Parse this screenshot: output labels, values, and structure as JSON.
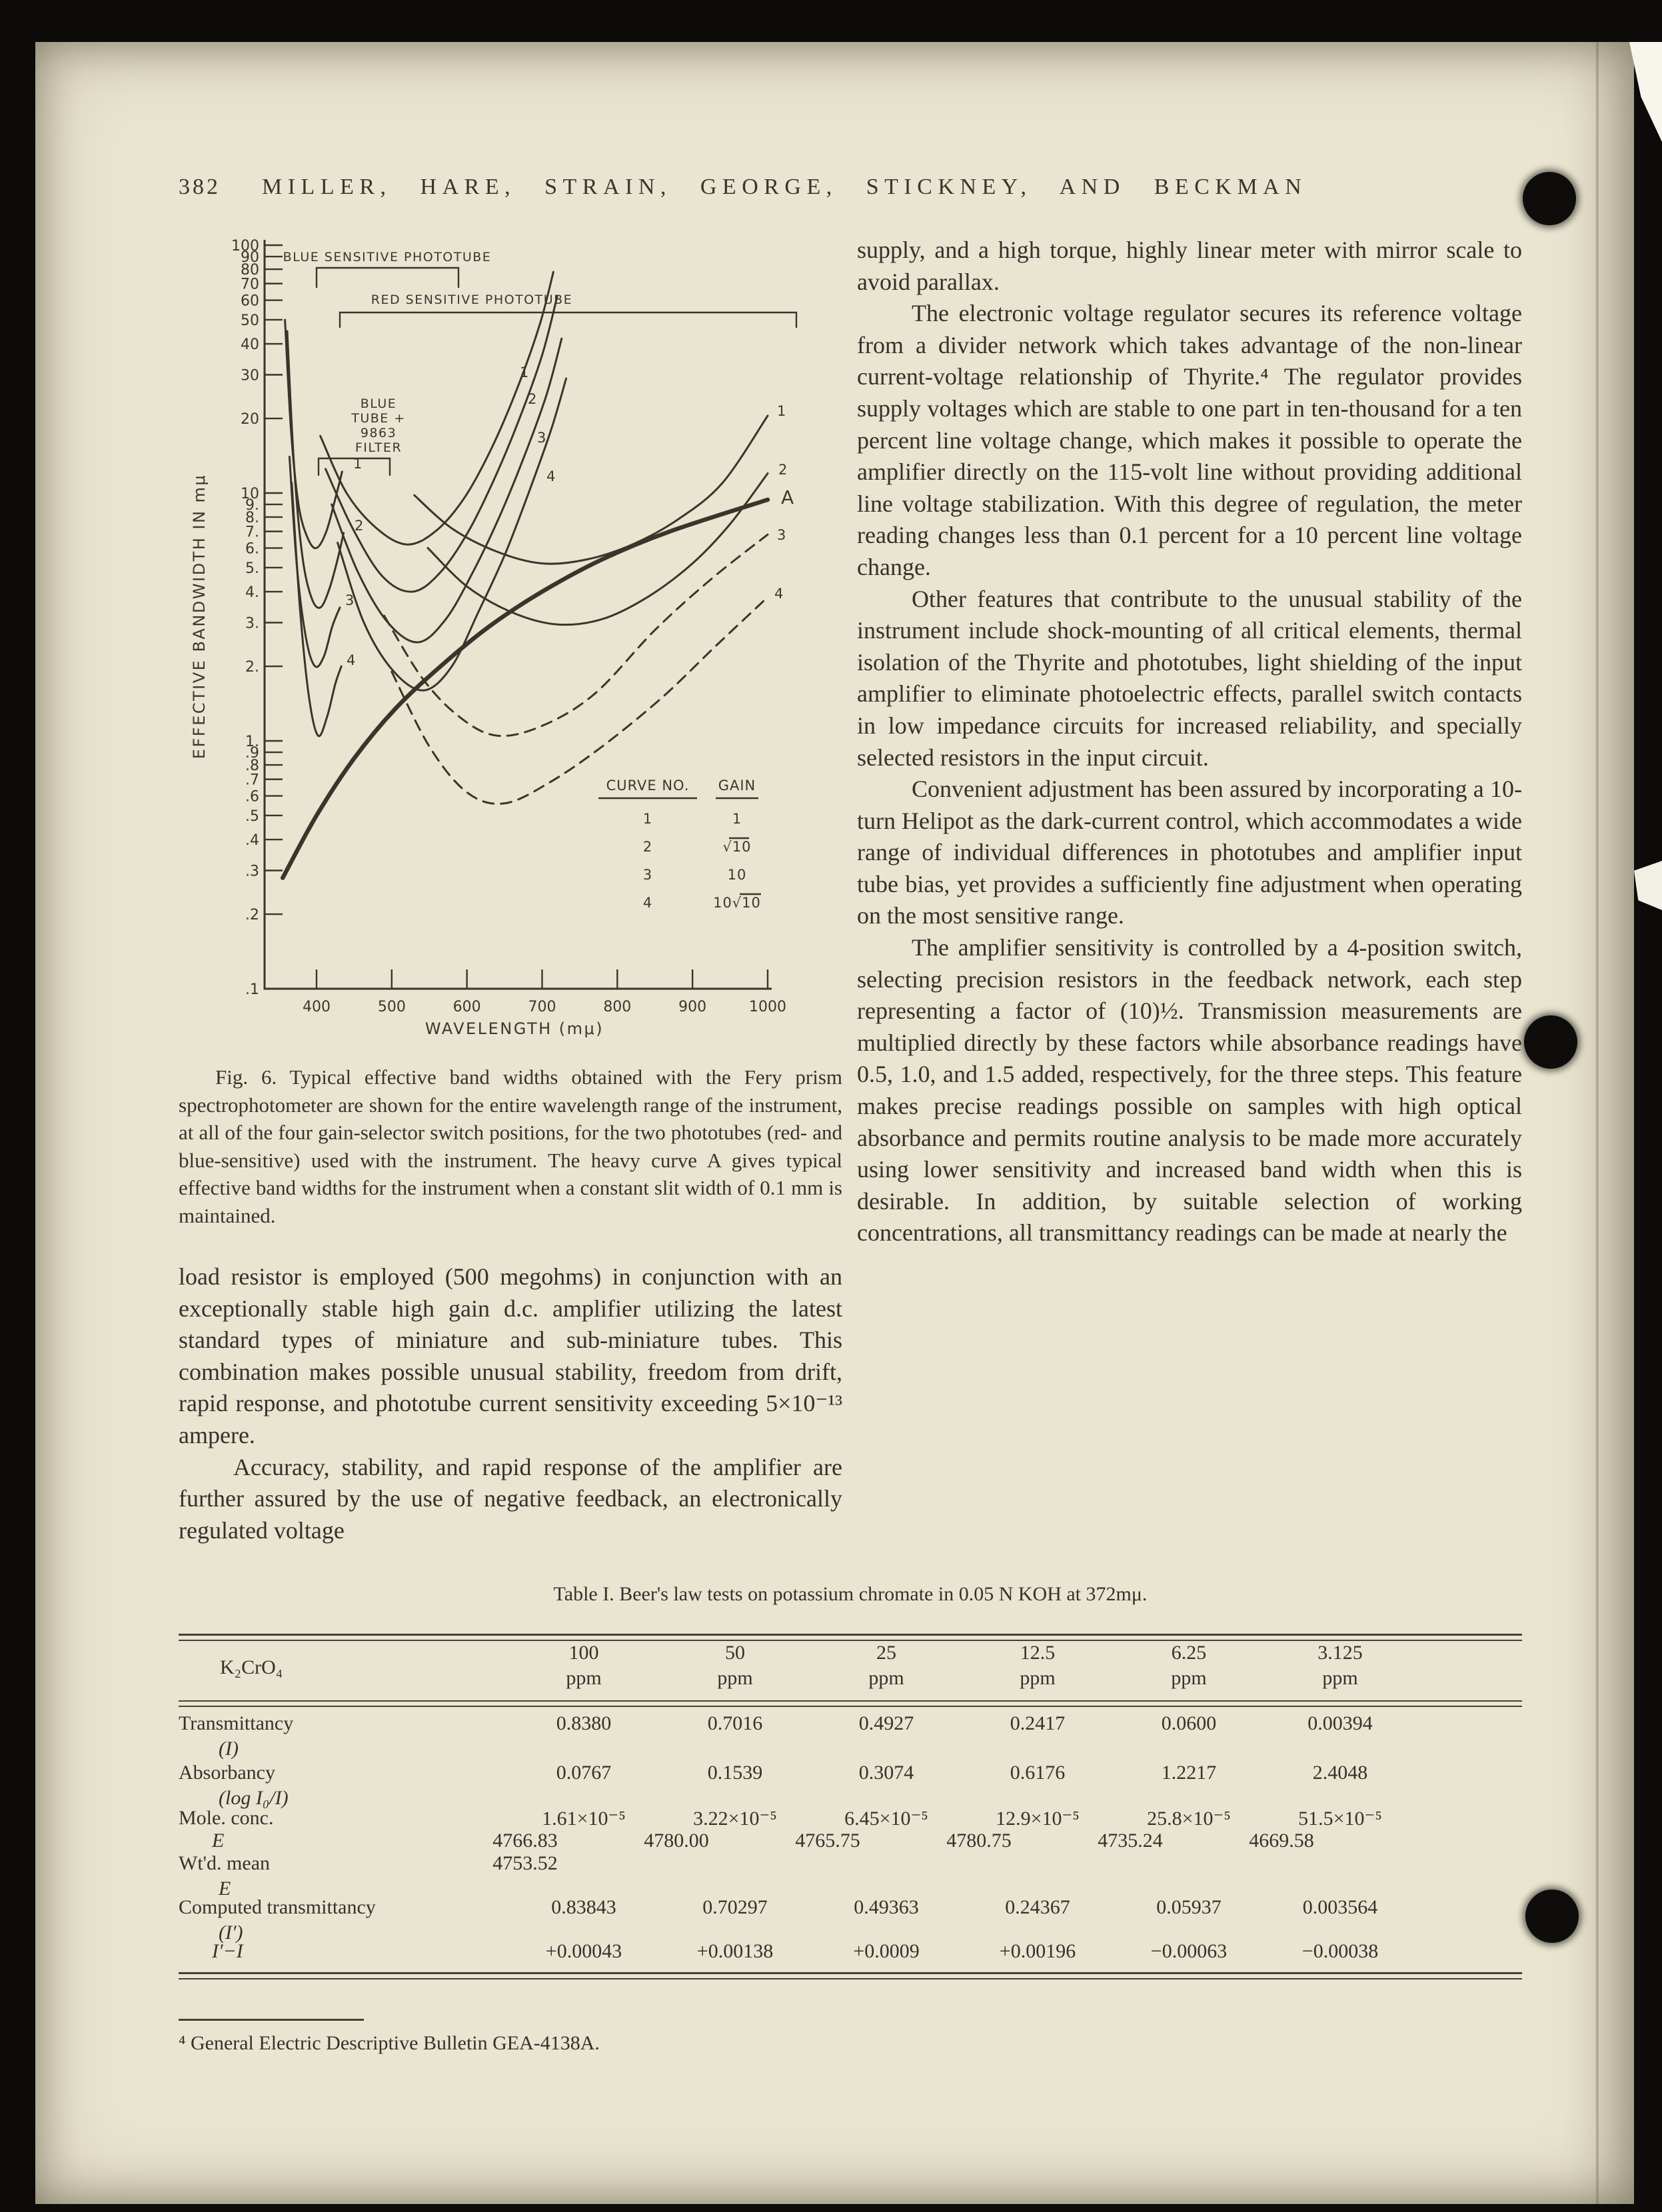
{
  "header": {
    "page_number": "382",
    "authors": "MILLER, HARE, STRAIN, GEORGE, STICKNEY, AND BECKMAN"
  },
  "chart_data": {
    "type": "line",
    "xlabel": "WAVELENGTH   (mμ)",
    "ylabel": "EFFECTIVE BANDWIDTH IN mμ",
    "x_range": [
      400,
      1000
    ],
    "y_scale": "log",
    "y_range": [
      0.1,
      100
    ],
    "grid": "off",
    "x_ticks": [
      [
        "400",
        400
      ],
      [
        "500",
        500
      ],
      [
        "600",
        600
      ],
      [
        "700",
        700
      ],
      [
        "800",
        800
      ],
      [
        "900",
        900
      ],
      [
        "1000",
        1000
      ]
    ],
    "y_ticks": [
      [
        "100",
        100
      ],
      [
        "90",
        90
      ],
      [
        "80",
        80
      ],
      [
        "70",
        70
      ],
      [
        "60",
        60
      ],
      [
        "50",
        50
      ],
      [
        "40",
        40
      ],
      [
        "30",
        30
      ],
      [
        "20",
        20
      ],
      [
        "10",
        10
      ],
      [
        "9.",
        9
      ],
      [
        "8.",
        8
      ],
      [
        "7.",
        7
      ],
      [
        "6.",
        6
      ],
      [
        "5.",
        5
      ],
      [
        "4.",
        4
      ],
      [
        "3.",
        3
      ],
      [
        "2.",
        2
      ],
      [
        "1.",
        1
      ],
      [
        ".9",
        0.9
      ],
      [
        ".8",
        0.8
      ],
      [
        ".7",
        0.7
      ],
      [
        ".6",
        0.6
      ],
      [
        ".5",
        0.5
      ],
      [
        ".4",
        0.4
      ],
      [
        ".3",
        0.3
      ],
      [
        ".2",
        0.2
      ],
      [
        ".1",
        0.1
      ]
    ],
    "annotations": [
      {
        "t": "BLUE SENSITIVE PHOTOTUBE",
        "x": 581,
        "y": 392
      },
      {
        "t": "RED SENSITIVE PHOTOTUBE",
        "x": 708,
        "y": 456
      },
      {
        "t": "BLUE",
        "x": 568,
        "y": 612
      },
      {
        "t": "TUBE +",
        "x": 568,
        "y": 634
      },
      {
        "t": "9863",
        "x": 568,
        "y": 656
      },
      {
        "t": "FILTER",
        "x": 568,
        "y": 678
      }
    ],
    "brackets": [
      "M475 432 V402 H688 V432",
      "M510 492 V469 H1195 V492",
      "M478 714 V688 H585 V714"
    ],
    "legend": {
      "headers": [
        "CURVE NO.",
        "GAIN"
      ],
      "rows": [
        {
          "no": "1",
          "gain": "1"
        },
        {
          "no": "2",
          "gain": "√10",
          "over": [
            1094,
            1124
          ]
        },
        {
          "no": "3",
          "gain": "10"
        },
        {
          "no": "4",
          "gain": "10√10",
          "over": [
            1110,
            1142
          ]
        }
      ]
    },
    "series": [
      {
        "name": "blue tube + 9863 filter, gain 1",
        "style": "solid",
        "points": [
          [
            358,
            50
          ],
          [
            366,
            18
          ],
          [
            376,
            9
          ],
          [
            388,
            6.6
          ],
          [
            400,
            6.0
          ],
          [
            413,
            7.0
          ],
          [
            425,
            9.5
          ],
          [
            434,
            12.2
          ]
        ]
      },
      {
        "name": "blue tube + 9863 filter, gain √10",
        "style": "solid",
        "points": [
          [
            361,
            45
          ],
          [
            370,
            13
          ],
          [
            381,
            5.6
          ],
          [
            393,
            3.8
          ],
          [
            405,
            3.45
          ],
          [
            417,
            4.1
          ],
          [
            428,
            5.4
          ],
          [
            436,
            6.9
          ]
        ]
      },
      {
        "name": "blue tube + 9863 filter, gain 10",
        "style": "solid",
        "points": [
          [
            364,
            14
          ],
          [
            374,
            5.0
          ],
          [
            386,
            2.6
          ],
          [
            398,
            2.0
          ],
          [
            410,
            2.2
          ],
          [
            421,
            2.9
          ],
          [
            431,
            3.45
          ]
        ]
      },
      {
        "name": "blue tube + 9863 filter, gain 10√10",
        "style": "solid",
        "points": [
          [
            367,
            11
          ],
          [
            378,
            3.4
          ],
          [
            390,
            1.5
          ],
          [
            402,
            1.05
          ],
          [
            414,
            1.25
          ],
          [
            425,
            1.7
          ],
          [
            433,
            2.0
          ]
        ]
      },
      {
        "name": "blue sensitive phototube, curve 1",
        "style": "solid",
        "points": [
          [
            405,
            17
          ],
          [
            440,
            10
          ],
          [
            480,
            7.2
          ],
          [
            520,
            6.2
          ],
          [
            558,
            7.0
          ],
          [
            596,
            9.5
          ],
          [
            632,
            15
          ],
          [
            666,
            26
          ],
          [
            697,
            48
          ],
          [
            715,
            78
          ]
        ]
      },
      {
        "name": "blue sensitive phototube, curve 2",
        "style": "solid",
        "points": [
          [
            412,
            12.5
          ],
          [
            448,
            7.2
          ],
          [
            488,
            4.6
          ],
          [
            528,
            4.0
          ],
          [
            565,
            4.8
          ],
          [
            602,
            7.0
          ],
          [
            637,
            11.5
          ],
          [
            670,
            20
          ],
          [
            700,
            36
          ],
          [
            720,
            62
          ]
        ]
      },
      {
        "name": "blue sensitive phototube, curve 3",
        "style": "solid",
        "points": [
          [
            420,
            9.0
          ],
          [
            455,
            4.8
          ],
          [
            495,
            3.0
          ],
          [
            535,
            2.5
          ],
          [
            572,
            3.1
          ],
          [
            608,
            4.8
          ],
          [
            643,
            8.0
          ],
          [
            676,
            14
          ],
          [
            706,
            25
          ],
          [
            726,
            42
          ]
        ]
      },
      {
        "name": "blue sensitive phototube, curve 4",
        "style": "solid",
        "points": [
          [
            428,
            6.3
          ],
          [
            463,
            3.0
          ],
          [
            503,
            1.9
          ],
          [
            543,
            1.6
          ],
          [
            580,
            2.0
          ],
          [
            615,
            3.3
          ],
          [
            650,
            5.6
          ],
          [
            682,
            10
          ],
          [
            712,
            18
          ],
          [
            732,
            29
          ]
        ]
      },
      {
        "name": "red sensitive phototube, curve 1",
        "style": "solid",
        "points": [
          [
            530,
            9.8
          ],
          [
            580,
            7.2
          ],
          [
            640,
            5.8
          ],
          [
            700,
            5.2
          ],
          [
            760,
            5.4
          ],
          [
            820,
            6.2
          ],
          [
            880,
            7.8
          ],
          [
            940,
            11
          ],
          [
            1000,
            20.5
          ]
        ]
      },
      {
        "name": "red sensitive phototube, curve 2",
        "style": "solid",
        "points": [
          [
            548,
            6.0
          ],
          [
            600,
            4.2
          ],
          [
            660,
            3.3
          ],
          [
            720,
            2.95
          ],
          [
            780,
            3.1
          ],
          [
            840,
            3.8
          ],
          [
            900,
            5.2
          ],
          [
            950,
            7.5
          ],
          [
            1000,
            12
          ]
        ]
      },
      {
        "name": "red sensitive phototube, curve 3",
        "style": "dashed",
        "points": [
          [
            490,
            3.2
          ],
          [
            540,
            1.8
          ],
          [
            590,
            1.25
          ],
          [
            640,
            1.05
          ],
          [
            700,
            1.15
          ],
          [
            770,
            1.55
          ],
          [
            850,
            2.8
          ],
          [
            925,
            4.5
          ],
          [
            1000,
            6.8
          ]
        ]
      },
      {
        "name": "red sensitive phototube, curve 4",
        "style": "dashed",
        "points": [
          [
            500,
            1.9
          ],
          [
            550,
            0.95
          ],
          [
            600,
            0.62
          ],
          [
            650,
            0.56
          ],
          [
            710,
            0.68
          ],
          [
            780,
            0.95
          ],
          [
            860,
            1.5
          ],
          [
            930,
            2.4
          ],
          [
            1000,
            3.8
          ]
        ]
      },
      {
        "name": "curve A constant slit 0.1 mm",
        "style": "heavy",
        "points": [
          [
            355,
            0.28
          ],
          [
            400,
            0.5
          ],
          [
            450,
            0.85
          ],
          [
            505,
            1.35
          ],
          [
            565,
            2.0
          ],
          [
            630,
            2.9
          ],
          [
            700,
            4.0
          ],
          [
            780,
            5.4
          ],
          [
            870,
            7.0
          ],
          [
            1000,
            9.4
          ]
        ]
      }
    ],
    "curve_labels": [
      {
        "t": "1",
        "x": 530,
        "y": 703
      },
      {
        "t": "2",
        "x": 532,
        "y": 796
      },
      {
        "t": "3",
        "x": 518,
        "y": 908
      },
      {
        "t": "4",
        "x": 520,
        "y": 998
      },
      {
        "t": "1",
        "x": 780,
        "y": 566
      },
      {
        "t": "2",
        "x": 792,
        "y": 606
      },
      {
        "t": "3",
        "x": 806,
        "y": 664
      },
      {
        "t": "4",
        "x": 820,
        "y": 722
      },
      {
        "t": "1",
        "x": 1166,
        "y": 624
      },
      {
        "t": "2",
        "x": 1168,
        "y": 712
      },
      {
        "t": "A",
        "x": 1172,
        "y": 756,
        "big": true
      },
      {
        "t": "3",
        "x": 1166,
        "y": 810
      },
      {
        "t": "4",
        "x": 1162,
        "y": 898
      }
    ]
  },
  "figure_caption": "Fig. 6. Typical effective band widths obtained with the Fery prism spectrophotometer are shown for the entire wavelength range of the instrument, at all of the four gain-selector switch positions, for the two phototubes (red- and blue-sensitive) used with the instrument. The heavy curve A gives typical effective band widths for the instrument when a constant slit width of 0.1 mm is maintained.",
  "columns": {
    "left": [
      "load resistor is employed (500 megohms) in conjunction with an exceptionally stable high gain d.c. amplifier utilizing the latest standard types of miniature and sub-miniature tubes. This combination makes possible unusual stability, freedom from drift, rapid response, and phototube current sensitivity exceeding 5×10⁻¹³ ampere.",
      "Accuracy, stability, and rapid response of the amplifier are further assured by the use of negative feedback, an electronically regulated voltage"
    ],
    "right": [
      "supply, and a high torque, highly linear meter with mirror scale to avoid parallax.",
      "The electronic voltage regulator secures its reference voltage from a divider network which takes advantage of the non-linear current-voltage relationship of Thyrite.⁴ The regulator provides supply voltages which are stable to one part in ten-thousand for a ten percent line voltage change, which makes it possible to operate the amplifier directly on the 115-volt line without providing additional line voltage stabilization. With this degree of regulation, the meter reading changes less than 0.1 percent for a 10 percent line voltage change.",
      "Other features that contribute to the unusual stability of the instrument include shock-mounting of all critical elements, thermal isolation of the Thyrite and phototubes, light shielding of the input amplifier to eliminate photoelectric effects, parallel switch contacts in low impedance circuits for increased reliability, and specially selected resistors in the input circuit.",
      "Convenient adjustment has been assured by incorporating a 10-turn Helipot as the dark-current control, which accommodates a wide range of individual differences in phototubes and amplifier input tube bias, yet provides a sufficiently fine adjustment when operating on the most sensitive range.",
      "The amplifier sensitivity is controlled by a 4-position switch, selecting precision resistors in the feedback network, each step representing a factor of (10)½. Transmission measurements are multiplied directly by these factors while absorbance readings have 0.5, 1.0, and 1.5 added, respectively, for the three steps. This feature makes precise readings possible on samples with high optical absorbance and permits routine analysis to be made more accurately using lower sensitivity and increased band width when this is desirable. In addition, by suitable selection of working concentrations, all transmittancy readings can be made at nearly the"
    ]
  },
  "table": {
    "title": "Table I. Beer's law tests on potassium chromate in 0.05 N KOH at 372mμ.",
    "corner_label": "K₂CrO₄",
    "columns": [
      [
        "100",
        "ppm"
      ],
      [
        "50",
        "ppm"
      ],
      [
        "25",
        "ppm"
      ],
      [
        "12.5",
        "ppm"
      ],
      [
        "6.25",
        "ppm"
      ],
      [
        "3.125",
        "ppm"
      ]
    ],
    "rows": [
      {
        "label": "Transmittancy",
        "sub": "(I)",
        "values": [
          "0.8380",
          "0.7016",
          "0.4927",
          "0.2417",
          "0.0600",
          "0.00394"
        ]
      },
      {
        "label": "Absorbancy",
        "sub": "(log I₀/I)",
        "values": [
          "0.0767",
          "0.1539",
          "0.3074",
          "0.6176",
          "1.2217",
          "2.4048"
        ]
      },
      {
        "label": "Mole. conc.",
        "values": [
          "1.61×10⁻⁵",
          "3.22×10⁻⁵",
          "6.45×10⁻⁵",
          "12.9×10⁻⁵",
          "25.8×10⁻⁵",
          "51.5×10⁻⁵"
        ]
      },
      {
        "label": "E",
        "values": [
          "4766.83",
          "4780.00",
          "4765.75",
          "4780.75",
          "4735.24",
          "4669.58"
        ]
      },
      {
        "label": "Wt'd. mean",
        "sub": "E",
        "values": [
          "4753.52",
          "",
          "",
          "",
          "",
          ""
        ]
      },
      {
        "label": "Computed transmittancy",
        "sub": "(I′)",
        "values": [
          "0.83843",
          "0.70297",
          "0.49363",
          "0.24367",
          "0.05937",
          "0.003564"
        ]
      },
      {
        "label": "I′−I",
        "values": [
          "+0.00043",
          "+0.00138",
          "+0.0009",
          "+0.00196",
          "−0.00063",
          "−0.00038"
        ]
      }
    ]
  },
  "footnote": {
    "text": "⁴ General Electric Descriptive Bulletin GEA-4138A."
  }
}
